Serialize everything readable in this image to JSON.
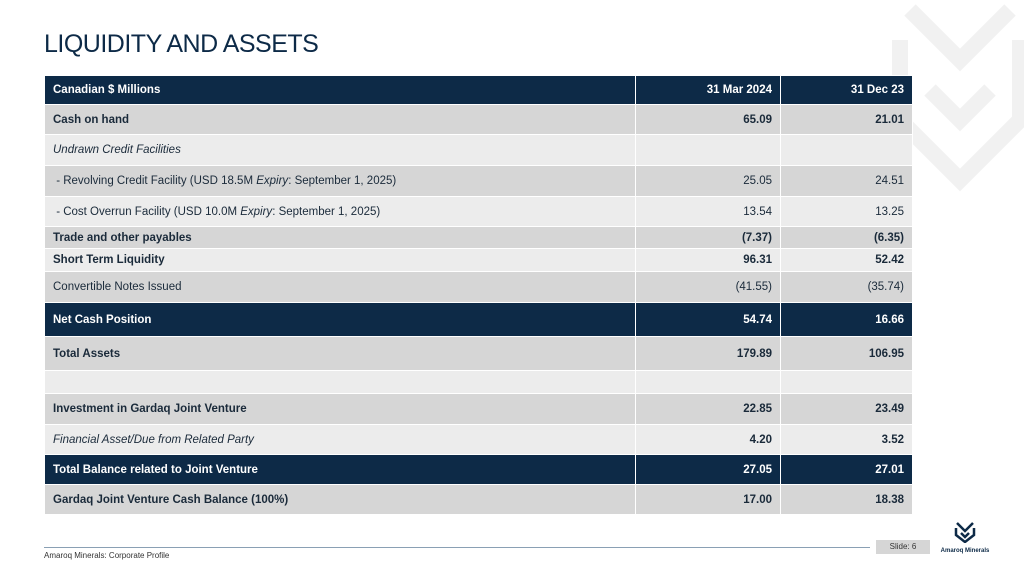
{
  "header": {
    "title": "LIQUIDITY AND ASSETS"
  },
  "table": {
    "columns": [
      "Canadian $ Millions",
      "31 Mar 2024",
      "31 Dec 23"
    ],
    "rows": [
      [
        "Cash on hand",
        "65.09",
        "21.01"
      ],
      [
        "Undrawn Credit Facilities"
      ],
      [
        [
          " - Revolving Credit Facility (USD 18.5M ",
          "Expiry",
          ": September 1, 2025)"
        ],
        "25.05",
        "24.51"
      ],
      [
        [
          " - Cost Overrun Facility (USD 10.0M ",
          "Expiry",
          ": September 1, 2025)"
        ],
        "13.54",
        "13.25"
      ],
      [
        "Trade and other payables",
        "(7.37)",
        "(6.35)"
      ],
      [
        "Short Term Liquidity",
        "96.31",
        "52.42"
      ],
      [
        "Convertible Notes Issued",
        "(41.55)",
        "(35.74)"
      ],
      [
        "Net Cash Position",
        "54.74",
        "16.66"
      ],
      [
        "Total Assets",
        "179.89",
        "106.95"
      ],
      [],
      [
        "Investment in Gardaq Joint Venture",
        "22.85",
        "23.49"
      ],
      [
        "Financial Asset/Due from Related Party",
        "4.20",
        "3.52"
      ],
      [
        "Total Balance related to Joint Venture",
        "27.05",
        "27.01"
      ],
      [
        "Gardaq Joint Venture Cash Balance (100%)",
        "17.00",
        "18.38"
      ]
    ]
  },
  "footer": {
    "text": "Amaroq Minerals: Corporate Profile",
    "slide": "Slide: 6",
    "logo": "Amaroq Minerals"
  }
}
